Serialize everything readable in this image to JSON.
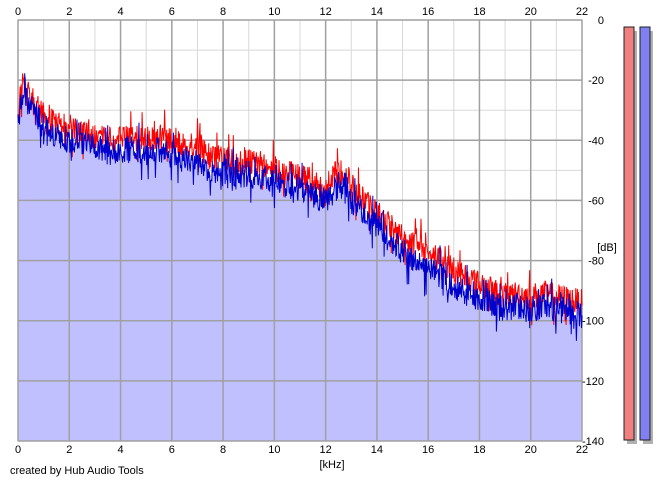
{
  "chart_data": {
    "type": "area",
    "x_axis": {
      "range": [
        0,
        22
      ],
      "ticks": [
        "0",
        "2",
        "4",
        "6",
        "8",
        "10",
        "12",
        "14",
        "16",
        "18",
        "20",
        "22"
      ],
      "unit_label": "[kHz]"
    },
    "y_axis": {
      "range": [
        -140,
        0
      ],
      "ticks": [
        "0",
        "-20",
        "-40",
        "-60",
        "-80",
        "-100",
        "-120",
        "-140"
      ],
      "unit_label": "[dB]"
    },
    "grid": true,
    "series": [
      {
        "color": "#ff0000",
        "x": [
          0.0,
          0.2,
          0.5,
          1.0,
          1.5,
          2.0,
          2.5,
          3.0,
          3.5,
          4.0,
          4.5,
          5.0,
          5.5,
          6.0,
          6.5,
          7.0,
          7.5,
          8.0,
          8.5,
          9.0,
          9.5,
          10.0,
          10.5,
          11.0,
          11.5,
          12.0,
          12.5,
          12.8,
          13.0,
          13.5,
          14.0,
          14.5,
          15.0,
          15.5,
          16.0,
          16.5,
          17.0,
          17.5,
          18.0,
          18.5,
          19.0,
          19.5,
          20.0,
          20.5,
          21.0,
          21.5,
          22.0
        ],
        "values": [
          -30,
          -21,
          -26,
          -32,
          -35,
          -36,
          -38,
          -39,
          -40,
          -39,
          -40,
          -40,
          -39,
          -40,
          -41,
          -41,
          -46,
          -46,
          -48,
          -47,
          -48,
          -49,
          -51,
          -52,
          -54,
          -56,
          -50,
          -51,
          -55,
          -60,
          -64,
          -68,
          -72,
          -75,
          -77,
          -80,
          -83,
          -85,
          -88,
          -90,
          -92,
          -91,
          -92,
          -91,
          -92,
          -93,
          -94
        ]
      },
      {
        "color": "#0000cc",
        "fill": "#c0c0ff",
        "x": [
          0.0,
          0.2,
          0.5,
          1.0,
          1.5,
          2.0,
          2.5,
          3.0,
          3.5,
          4.0,
          4.5,
          5.0,
          5.5,
          6.0,
          6.5,
          7.0,
          7.5,
          8.0,
          8.5,
          9.0,
          9.5,
          10.0,
          10.5,
          11.0,
          11.5,
          12.0,
          12.5,
          12.8,
          13.0,
          13.5,
          14.0,
          14.5,
          15.0,
          15.5,
          16.0,
          16.5,
          17.0,
          17.5,
          18.0,
          18.5,
          19.0,
          19.5,
          20.0,
          20.5,
          21.0,
          21.5,
          22.0
        ],
        "values": [
          -34,
          -24,
          -29,
          -35,
          -38,
          -40,
          -41,
          -42,
          -44,
          -43,
          -43,
          -44,
          -43,
          -45,
          -46,
          -47,
          -51,
          -50,
          -52,
          -51,
          -53,
          -53,
          -55,
          -56,
          -58,
          -60,
          -55,
          -55,
          -60,
          -65,
          -69,
          -73,
          -77,
          -80,
          -83,
          -85,
          -88,
          -91,
          -93,
          -95,
          -96,
          -95,
          -96,
          -95,
          -96,
          -97,
          -98
        ]
      }
    ],
    "level_meters": [
      {
        "color": "#f08080",
        "level": 1.0
      },
      {
        "color": "#8080f0",
        "level": 1.0
      }
    ]
  },
  "footer": {
    "credit": "created by Hub Audio Tools"
  }
}
